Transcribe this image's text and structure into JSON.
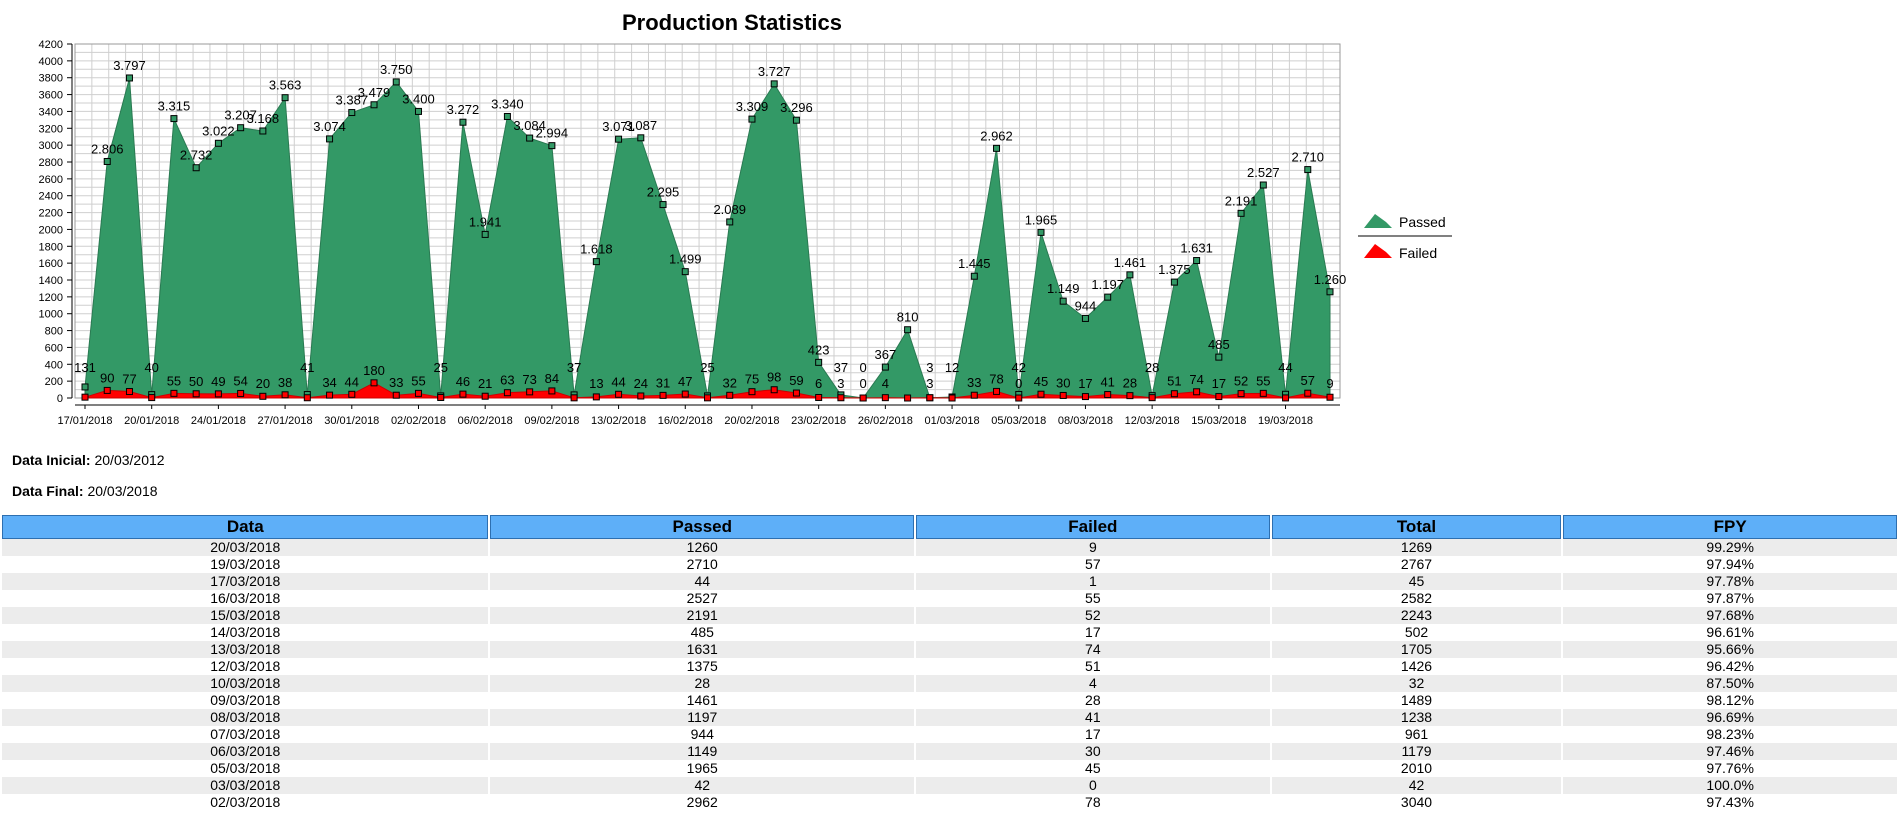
{
  "chart_data": {
    "type": "area",
    "title": "Production Statistics",
    "ylim": [
      0,
      4200
    ],
    "yticks": [
      0,
      200,
      400,
      600,
      800,
      1000,
      1200,
      1400,
      1600,
      1800,
      2000,
      2200,
      2400,
      2600,
      2800,
      3000,
      3200,
      3400,
      3600,
      3800,
      4000,
      4200
    ],
    "x_tick_labels": [
      "17/01/2018",
      "20/01/2018",
      "24/01/2018",
      "27/01/2018",
      "30/01/2018",
      "02/02/2018",
      "06/02/2018",
      "09/02/2018",
      "13/02/2018",
      "16/02/2018",
      "20/02/2018",
      "23/02/2018",
      "26/02/2018",
      "01/03/2018",
      "05/03/2018",
      "08/03/2018",
      "12/03/2018",
      "15/03/2018",
      "19/03/2018"
    ],
    "grid": true,
    "legend_position": "right",
    "series": [
      {
        "name": "Passed",
        "color": "#339966",
        "values": [
          131,
          2806,
          3797,
          40,
          3315,
          2732,
          3022,
          3207,
          3168,
          3563,
          41,
          3074,
          3387,
          3479,
          3750,
          3400,
          25,
          3272,
          1941,
          3340,
          3084,
          2994,
          37,
          1618,
          3071,
          3087,
          2295,
          1499,
          25,
          2089,
          3309,
          3727,
          3296,
          423,
          37,
          0,
          367,
          810,
          3,
          12,
          1445,
          2962,
          42,
          1965,
          1149,
          944,
          1197,
          1461,
          28,
          1375,
          1631,
          485,
          2191,
          2527,
          44,
          2710,
          1260
        ],
        "labels": [
          "131",
          "2.806",
          "3.797",
          "40",
          "3.315",
          "2.732",
          "3.022",
          "3.207",
          "3.168",
          "3.563",
          "41",
          "3.074",
          "3.387",
          "3.479",
          "3.750",
          "3.400",
          "25",
          "3.272",
          "1.941",
          "3.340",
          "3.084",
          "2.994",
          "37",
          "1.618",
          "3.071",
          "3.087",
          "2.295",
          "1.499",
          "25",
          "2.089",
          "3.309",
          "3.727",
          "3.296",
          "423",
          "37",
          "0",
          "367",
          "810",
          "3",
          "12",
          "1.445",
          "2.962",
          "42",
          "1.965",
          "1.149",
          "944",
          "1.197",
          "1.461",
          "28",
          "1.375",
          "1.631",
          "485",
          "2.191",
          "2.527",
          "44",
          "2.710",
          "1.260"
        ]
      },
      {
        "name": "Failed",
        "color": "#ff0000",
        "values": [
          10,
          90,
          77,
          5,
          55,
          50,
          49,
          54,
          20,
          38,
          3,
          34,
          44,
          180,
          33,
          55,
          6,
          46,
          21,
          63,
          73,
          84,
          2,
          13,
          44,
          24,
          31,
          47,
          2,
          32,
          75,
          98,
          59,
          6,
          3,
          0,
          4,
          0,
          3,
          0,
          33,
          78,
          0,
          45,
          30,
          17,
          41,
          28,
          4,
          51,
          74,
          17,
          52,
          55,
          1,
          57,
          9
        ],
        "labels": [
          "",
          "90",
          "77",
          "",
          "55",
          "50",
          "49",
          "54",
          "20",
          "38",
          "",
          "34",
          "44",
          "180",
          "33",
          "55",
          "",
          "46",
          "21",
          "63",
          "73",
          "84",
          "",
          "13",
          "44",
          "24",
          "31",
          "47",
          "",
          "32",
          "75",
          "98",
          "59",
          "6",
          "3",
          "0",
          "4",
          "",
          "3",
          "",
          "33",
          "78",
          "0",
          "45",
          "30",
          "17",
          "41",
          "28",
          "",
          "51",
          "74",
          "17",
          "52",
          "55",
          "",
          "57",
          "9"
        ]
      }
    ]
  },
  "meta": {
    "data_inicial_label": "Data Inicial:",
    "data_inicial_value": "20/03/2012",
    "data_final_label": "Data Final:",
    "data_final_value": "20/03/2018"
  },
  "table": {
    "headers": [
      "Data",
      "Passed",
      "Failed",
      "Total",
      "FPY"
    ],
    "rows": [
      [
        "20/03/2018",
        "1260",
        "9",
        "1269",
        "99.29%"
      ],
      [
        "19/03/2018",
        "2710",
        "57",
        "2767",
        "97.94%"
      ],
      [
        "17/03/2018",
        "44",
        "1",
        "45",
        "97.78%"
      ],
      [
        "16/03/2018",
        "2527",
        "55",
        "2582",
        "97.87%"
      ],
      [
        "15/03/2018",
        "2191",
        "52",
        "2243",
        "97.68%"
      ],
      [
        "14/03/2018",
        "485",
        "17",
        "502",
        "96.61%"
      ],
      [
        "13/03/2018",
        "1631",
        "74",
        "1705",
        "95.66%"
      ],
      [
        "12/03/2018",
        "1375",
        "51",
        "1426",
        "96.42%"
      ],
      [
        "10/03/2018",
        "28",
        "4",
        "32",
        "87.50%"
      ],
      [
        "09/03/2018",
        "1461",
        "28",
        "1489",
        "98.12%"
      ],
      [
        "08/03/2018",
        "1197",
        "41",
        "1238",
        "96.69%"
      ],
      [
        "07/03/2018",
        "944",
        "17",
        "961",
        "98.23%"
      ],
      [
        "06/03/2018",
        "1149",
        "30",
        "1179",
        "97.46%"
      ],
      [
        "05/03/2018",
        "1965",
        "45",
        "2010",
        "97.76%"
      ],
      [
        "03/03/2018",
        "42",
        "0",
        "42",
        "100.0%"
      ],
      [
        "02/03/2018",
        "2962",
        "78",
        "3040",
        "97.43%"
      ]
    ]
  }
}
